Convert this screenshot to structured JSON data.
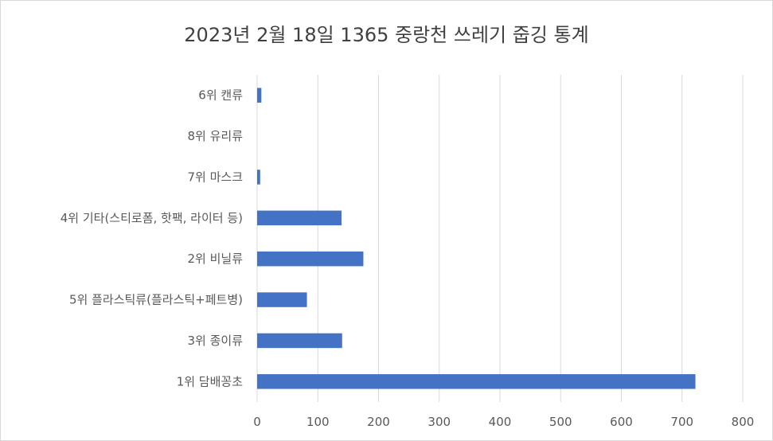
{
  "chart_data": {
    "type": "bar",
    "orientation": "horizontal",
    "title": "2023년 2월 18일 1365 중랑천 쓰레기 줍깅 통계",
    "categories": [
      "6위 캔류",
      "8위 유리류",
      "7위 마스크",
      "4위 기타(스티로폼, 핫팩, 라이터 등)",
      "2위 비닐류",
      "5위 플라스틱류(플라스틱+페트병)",
      "3위 종이류",
      "1위 담배꽁초"
    ],
    "values": [
      7,
      0,
      5,
      139,
      175,
      82,
      140,
      722
    ],
    "xlim": [
      0,
      800
    ],
    "xticks": [
      0,
      100,
      200,
      300,
      400,
      500,
      600,
      700,
      800
    ],
    "grid": true,
    "bar_color": "#4472C4",
    "grid_color": "#d9d9d9"
  }
}
